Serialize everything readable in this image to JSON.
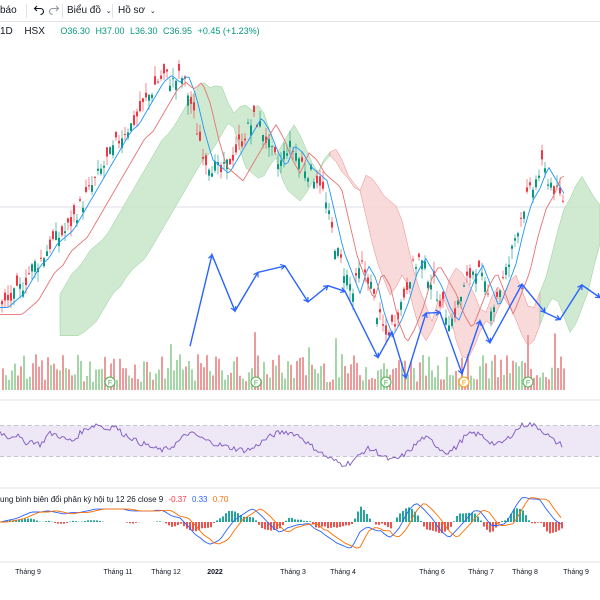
{
  "toolbar": {
    "bao_label": "báo",
    "undo_icon": "undo-icon",
    "redo_icon": "redo-icon",
    "chart_label": "Biểu đồ",
    "profile_label": "Hồ sơ",
    "dropdown_icon": "chevron-down-icon"
  },
  "legend": {
    "interval": "1D",
    "exchange": "HSX",
    "open": "O36.30",
    "high": "H37.00",
    "low": "L36.30",
    "close": "C36.95",
    "change": "+0.45 (+1.23%)"
  },
  "macd": {
    "label": "ung bình biên đổi phân kỳ hội tụ 12 26 close 9",
    "hist": "-0.37",
    "macd": "0.33",
    "signal": "0.70"
  },
  "colors": {
    "up": "#089981",
    "down": "#f23645",
    "wave": "#2962ff",
    "fast_ma": "#2196f3",
    "slow_ma": "#e57373",
    "cloud_bull": "#c8e6c9",
    "cloud_bear": "#f8d4d4",
    "rsi_band": "#ede7f6",
    "rsi_line": "#7e57c2",
    "macd_line": "#2962ff",
    "signal_line": "#ff6d00"
  },
  "x_axis": {
    "labels": [
      "Tháng 9",
      "Tháng 11",
      "Tháng 12",
      "2022",
      "Tháng 3",
      "Tháng 4",
      "Tháng 6",
      "Tháng 7",
      "Tháng 8",
      "Tháng 9"
    ],
    "bold_labels": [
      "2022"
    ]
  },
  "chart_data": {
    "type": "candlestick",
    "panes": [
      "price",
      "rsi",
      "macd"
    ],
    "grid": false,
    "price_close_path": [
      22,
      23,
      24,
      26,
      28,
      29,
      31,
      32,
      33,
      35,
      37,
      39,
      41,
      43,
      45,
      47,
      48,
      50,
      52,
      54,
      55,
      54,
      55,
      52,
      47,
      43,
      42,
      41,
      43,
      45,
      47,
      49,
      47,
      44,
      42,
      45,
      44,
      42,
      41,
      40,
      35,
      30,
      27,
      24,
      28,
      26,
      21,
      18,
      20,
      23,
      27,
      29,
      27,
      25,
      22,
      20,
      23,
      26,
      28,
      25,
      22,
      25,
      28,
      33,
      37,
      39,
      42,
      40,
      38,
      37
    ],
    "wave_points": [
      [
        190,
        1650
      ],
      [
        212,
        2950
      ],
      [
        235,
        2150
      ],
      [
        258,
        2700
      ],
      [
        285,
        2790
      ],
      [
        308,
        2280
      ],
      [
        328,
        2510
      ],
      [
        345,
        2430
      ],
      [
        378,
        1490
      ],
      [
        392,
        1850
      ],
      [
        406,
        1200
      ],
      [
        426,
        2120
      ],
      [
        440,
        2130
      ],
      [
        462,
        1260
      ],
      [
        480,
        2010
      ],
      [
        490,
        1700
      ],
      [
        522,
        2530
      ],
      [
        545,
        2130
      ],
      [
        560,
        2030
      ],
      [
        582,
        2520
      ],
      [
        600,
        2340
      ]
    ],
    "elliott_markers": [
      "F",
      "F",
      "F",
      "F",
      "F"
    ],
    "rsi": {
      "band_upper": 70,
      "band_lower": 30,
      "values": [
        62,
        55,
        58,
        48,
        50,
        45,
        60,
        58,
        52,
        50,
        62,
        68,
        72,
        65,
        70,
        60,
        55,
        48,
        45,
        40,
        38,
        42,
        50,
        60,
        58,
        52,
        48,
        45,
        42,
        40,
        38,
        40,
        48,
        55,
        60,
        62,
        60,
        55,
        45,
        38,
        30,
        25,
        20,
        22,
        30,
        40,
        38,
        30,
        25,
        28,
        35,
        45,
        55,
        50,
        40,
        35,
        42,
        55,
        60,
        58,
        50,
        45,
        50,
        60,
        70,
        72,
        68,
        60,
        50,
        45
      ]
    }
  }
}
